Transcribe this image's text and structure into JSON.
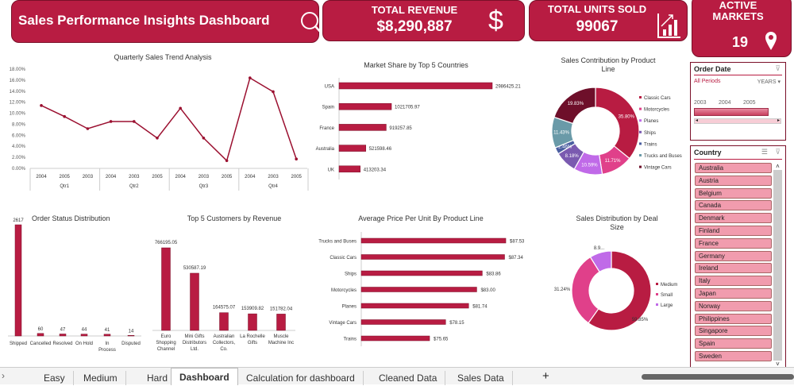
{
  "header": {
    "title": "Sales Performance Insights Dashboard",
    "title_icon": "search-icon",
    "revenue_label": "TOTAL REVENUE",
    "revenue_value": "$8,290,887",
    "revenue_icon": "dollar-icon",
    "units_label": "TOTAL UNITS SOLD",
    "units_value": "99067",
    "units_icon": "bar-chart-growth-icon",
    "markets_label": "ACTIVE MARKETS",
    "markets_value": "19",
    "markets_icon": "map-pin-icon"
  },
  "colors": {
    "accent": "#b81c42",
    "dark": "#7a0f28",
    "slicer_chip": "#f19cae"
  },
  "chart_data": [
    {
      "id": "quarterly",
      "type": "line",
      "title": "Quarterly Sales Trend Analysis",
      "ylim": [
        0,
        18
      ],
      "yticks": [
        "0.00%",
        "2.00%",
        "4.00%",
        "6.00%",
        "8.00%",
        "10.00%",
        "12.00%",
        "14.00%",
        "16.00%",
        "18.00%"
      ],
      "groups": [
        "Qtr1",
        "Qtr2",
        "Qtr3",
        "Qtr4"
      ],
      "categories": [
        "2004",
        "2005",
        "2003",
        "2004",
        "2003",
        "2005",
        "2004",
        "2003",
        "2005",
        "2004",
        "2003",
        "2005"
      ],
      "values": [
        11.4,
        9.4,
        7.2,
        8.5,
        8.5,
        5.5,
        10.9,
        5.5,
        1.4,
        16.4,
        13.9,
        1.7
      ],
      "color": "#9b1030"
    },
    {
      "id": "countries",
      "type": "bar",
      "orientation": "horizontal",
      "title": "Market Share by Top 5 Countries",
      "categories": [
        "USA",
        "Spain",
        "France",
        "Australia",
        "UK"
      ],
      "values": [
        2986425.21,
        1021705.97,
        919257.85,
        521598.46,
        413203.34
      ],
      "labels": [
        "2986425.21",
        "1021705.97",
        "919257.85",
        "521598.46",
        "413203.34"
      ]
    },
    {
      "id": "productline",
      "type": "pie",
      "title": "Sales Contribution by Product Line",
      "categories": [
        "Classic Cars",
        "Motorcycles",
        "Planes",
        "Ships",
        "Trains",
        "Trucks and Buses",
        "Vintage Cars"
      ],
      "values": [
        35.8,
        11.71,
        10.59,
        8.18,
        2.46,
        11.43,
        19.83
      ],
      "labels": [
        "35.80%",
        "11.71%",
        "10.59%",
        "8.18%",
        "2.46%",
        "11.43%",
        "19.83%"
      ],
      "colors": [
        "#b81c42",
        "#e0408a",
        "#c06ae8",
        "#7a5ab0",
        "#4a5ea0",
        "#6a9aa8",
        "#6e0f2a"
      ]
    },
    {
      "id": "orderstatus",
      "type": "bar",
      "title": "Order Status Distribution",
      "categories": [
        "Shipped",
        "Cancelled",
        "Resolved",
        "On Hold",
        "In Process",
        "Disputed"
      ],
      "values": [
        2617,
        60,
        47,
        44,
        41,
        14
      ]
    },
    {
      "id": "customers",
      "type": "bar",
      "title": "Top 5 Customers by Revenue",
      "categories": [
        "Euro Shopping Channel",
        "Mini Gifts Distributors Ltd.",
        "Australian Collectors, Co.",
        "La Rochelle Gifts",
        "Muscle Machine Inc"
      ],
      "values": [
        766195.05,
        530587.19,
        164575.07,
        153909.82,
        151782.04
      ],
      "labels": [
        "766195.05",
        "530587.19",
        "164575.07",
        "153909.82",
        "151782.04"
      ]
    },
    {
      "id": "avgprice",
      "type": "bar",
      "orientation": "horizontal",
      "title": "Average Price Per Unit By Product Line",
      "categories": [
        "Trucks and Buses",
        "Classic Cars",
        "Ships",
        "Motorcycles",
        "Planes",
        "Vintage Cars",
        "Trains"
      ],
      "values": [
        87.53,
        87.34,
        83.86,
        83.0,
        81.74,
        78.15,
        75.65
      ],
      "labels": [
        "$87.53",
        "$87.34",
        "$83.86",
        "$83.00",
        "$81.74",
        "$78.15",
        "$75.65"
      ]
    },
    {
      "id": "dealsize",
      "type": "pie",
      "title": "Sales Distribution by Deal Size",
      "categories": [
        "Medium",
        "Small",
        "Large"
      ],
      "values": [
        59.85,
        31.24,
        8.91
      ],
      "labels": [
        "59.85%",
        "31.24%",
        "8.9..."
      ],
      "colors": [
        "#b81c42",
        "#e0408a",
        "#c06ae8"
      ]
    }
  ],
  "order_date_slicer": {
    "title": "Order Date",
    "selection": "All Periods",
    "level": "YEARS",
    "years": [
      "2003",
      "2004",
      "2005"
    ]
  },
  "country_slicer": {
    "title": "Country",
    "items": [
      "Australia",
      "Austria",
      "Belgium",
      "Canada",
      "Denmark",
      "Finland",
      "France",
      "Germany",
      "Ireland",
      "Italy",
      "Japan",
      "Norway",
      "Philippines",
      "Singapore",
      "Spain",
      "Sweden"
    ]
  },
  "sheet_tabs": {
    "items": [
      "Easy",
      "Medium",
      "Hard",
      "Dashboard",
      "Calculation for dashboard",
      "Cleaned Data",
      "Sales Data"
    ],
    "active": "Dashboard",
    "add": "+"
  }
}
